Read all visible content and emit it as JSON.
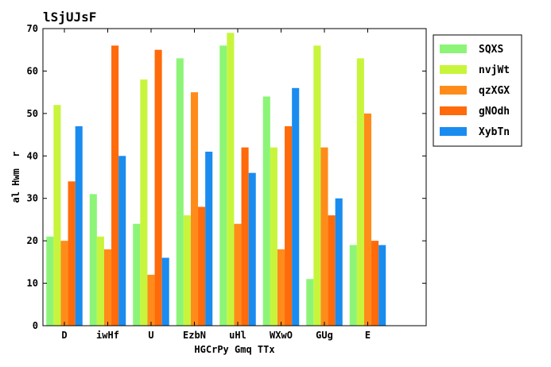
{
  "chart_data": {
    "type": "bar",
    "title": "lSjUJsF",
    "xlabel": "HGCrPy Gmq TTx",
    "ylabel": "al Hwm  r",
    "categories": [
      "D",
      "iwHf",
      "U",
      "EzbN",
      "uHl",
      "WXwO",
      "GUg",
      "E"
    ],
    "ylim": [
      0,
      70
    ],
    "yticks": [
      0,
      10,
      20,
      30,
      40,
      50,
      60,
      70
    ],
    "grid": false,
    "legend_position": "top-right",
    "series": [
      {
        "name": "SQXS",
        "color": "#8cf578",
        "values": [
          21,
          31,
          24,
          63,
          66,
          54,
          11,
          19
        ]
      },
      {
        "name": "nvjWt",
        "color": "#c8f53c",
        "values": [
          52,
          21,
          58,
          26,
          69,
          42,
          66,
          63
        ]
      },
      {
        "name": "qzXGX",
        "color": "#ff8c1a",
        "values": [
          20,
          18,
          12,
          55,
          24,
          18,
          42,
          50
        ]
      },
      {
        "name": "gNOdh",
        "color": "#ff6a0a",
        "values": [
          34,
          66,
          65,
          28,
          42,
          47,
          26,
          20
        ]
      },
      {
        "name": "XybTn",
        "color": "#1a8cf0",
        "values": [
          47,
          40,
          16,
          41,
          36,
          56,
          30,
          19
        ]
      }
    ]
  }
}
